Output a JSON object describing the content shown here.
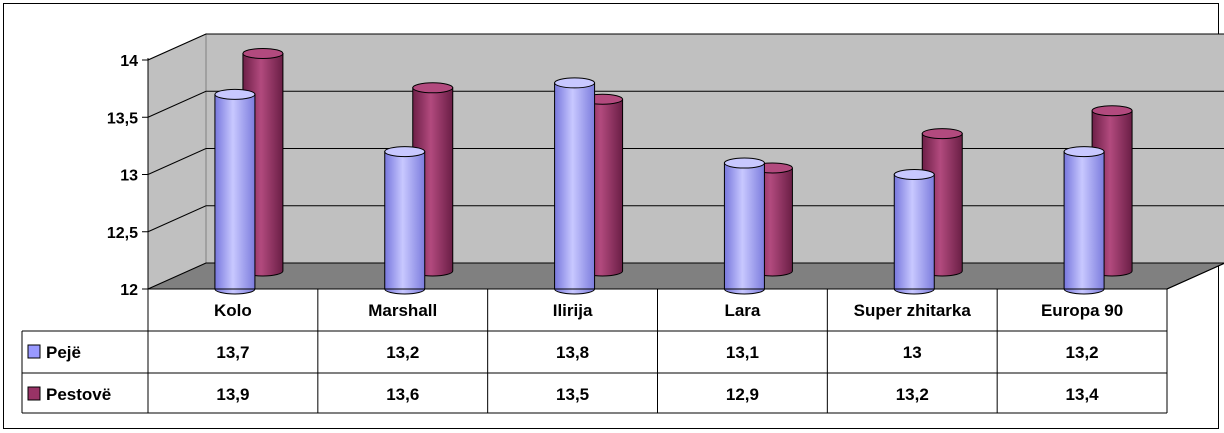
{
  "chart_data": {
    "type": "bar",
    "categories": [
      "Kolo",
      "Marshall",
      "Ilirija",
      "Lara",
      "Super zhitarka",
      "Europa 90"
    ],
    "series": [
      {
        "name": "Pejë",
        "values": [
          13.7,
          13.2,
          13.8,
          13.1,
          13.0,
          13.2
        ],
        "value_labels": [
          "13,7",
          "13,2",
          "13,8",
          "13,1",
          "13",
          "13,2"
        ],
        "color": "#9999ff"
      },
      {
        "name": "Pestovë",
        "values": [
          13.9,
          13.6,
          13.5,
          12.9,
          13.2,
          13.4
        ],
        "value_labels": [
          "13,9",
          "13,6",
          "13,5",
          "12,9",
          "13,2",
          "13,4"
        ],
        "color": "#993366"
      }
    ],
    "ylim": [
      12,
      14
    ],
    "yticks": [
      12,
      12.5,
      13,
      13.5,
      14
    ],
    "ytick_labels": [
      "12",
      "12,5",
      "13",
      "13,5",
      "14"
    ],
    "grid": true,
    "style": "3d-cylinder",
    "data_table": true,
    "wall_color": "#c0c0c0",
    "floor_color": "#808080"
  }
}
